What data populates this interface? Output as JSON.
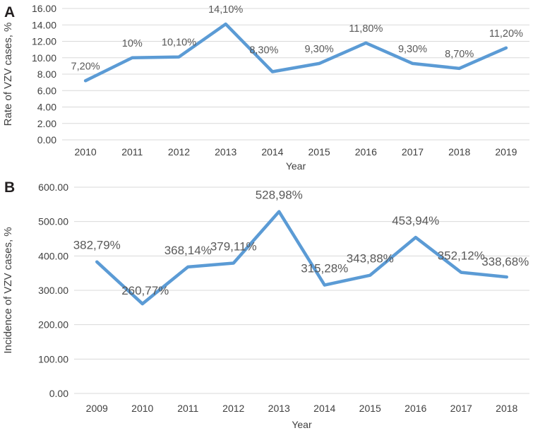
{
  "figure": {
    "background": "#ffffff",
    "colors": {
      "line": "#5B9BD5",
      "grid": "#D9D9D9",
      "tick_text": "#3f3f3f",
      "data_label_text": "#595959",
      "panel_letter": "#231f20"
    }
  },
  "chart_data": [
    {
      "type": "line",
      "panel_letter": "A",
      "title": "",
      "xlabel": "Year",
      "ylabel": "Rate of VZV cases, %",
      "x": [
        "2010",
        "2011",
        "2012",
        "2013",
        "2014",
        "2015",
        "2016",
        "2017",
        "2018",
        "2019"
      ],
      "values": [
        7.2,
        10,
        10.1,
        14.1,
        8.3,
        9.3,
        11.8,
        9.3,
        8.7,
        11.2
      ],
      "data_labels": [
        "7,20%",
        "10%",
        "10,10%",
        "14,10%",
        "8,30%",
        "9,30%",
        "11,80%",
        "9,30%",
        "8,70%",
        "11,20%"
      ],
      "label_dx": [
        0,
        0,
        0,
        0,
        -12,
        0,
        0,
        0,
        0,
        0
      ],
      "label_dy": [
        0,
        0,
        0,
        0,
        -10,
        0,
        0,
        0,
        0,
        0
      ],
      "ylim": [
        0,
        16
      ],
      "yticks": [
        {
          "v": 16,
          "label": "16.00"
        },
        {
          "v": 14,
          "label": "14.00"
        },
        {
          "v": 12,
          "label": "12.00"
        },
        {
          "v": 10,
          "label": "10.00"
        },
        {
          "v": 8,
          "label": "8.00"
        },
        {
          "v": 6,
          "label": "6.00"
        },
        {
          "v": 4,
          "label": "4.00"
        },
        {
          "v": 2,
          "label": "2.00"
        },
        {
          "v": 0,
          "label": "0.00"
        }
      ],
      "grid": true,
      "legend": null
    },
    {
      "type": "line",
      "panel_letter": "B",
      "title": "",
      "xlabel": "Year",
      "ylabel": "Incidence of VZV cases, %",
      "x": [
        "2009",
        "2010",
        "2011",
        "2012",
        "2013",
        "2014",
        "2015",
        "2016",
        "2017",
        "2018"
      ],
      "values": [
        382.79,
        260.77,
        368.14,
        379.11,
        528.98,
        315.28,
        343.88,
        453.94,
        352.12,
        338.68
      ],
      "data_labels": [
        "382,79%",
        "260,77%",
        "368,14%",
        "379,11%",
        "528,98%",
        "315,28%",
        "343,88%",
        "453,94%",
        "352,12%",
        "338,68%"
      ],
      "label_dx": [
        0,
        4,
        0,
        0,
        0,
        0,
        0,
        0,
        0,
        -2
      ],
      "label_dy": [
        0,
        5,
        0,
        0,
        0,
        0,
        0,
        0,
        0,
        2
      ],
      "ylim": [
        0,
        600
      ],
      "yticks": [
        {
          "v": 600,
          "label": "600.00"
        },
        {
          "v": 500,
          "label": "500.00"
        },
        {
          "v": 400,
          "label": "400.00"
        },
        {
          "v": 300,
          "label": "300.00"
        },
        {
          "v": 200,
          "label": "200.00"
        },
        {
          "v": 100,
          "label": "100.00"
        },
        {
          "v": 0,
          "label": "0.00"
        }
      ],
      "grid": true,
      "legend": null
    }
  ]
}
